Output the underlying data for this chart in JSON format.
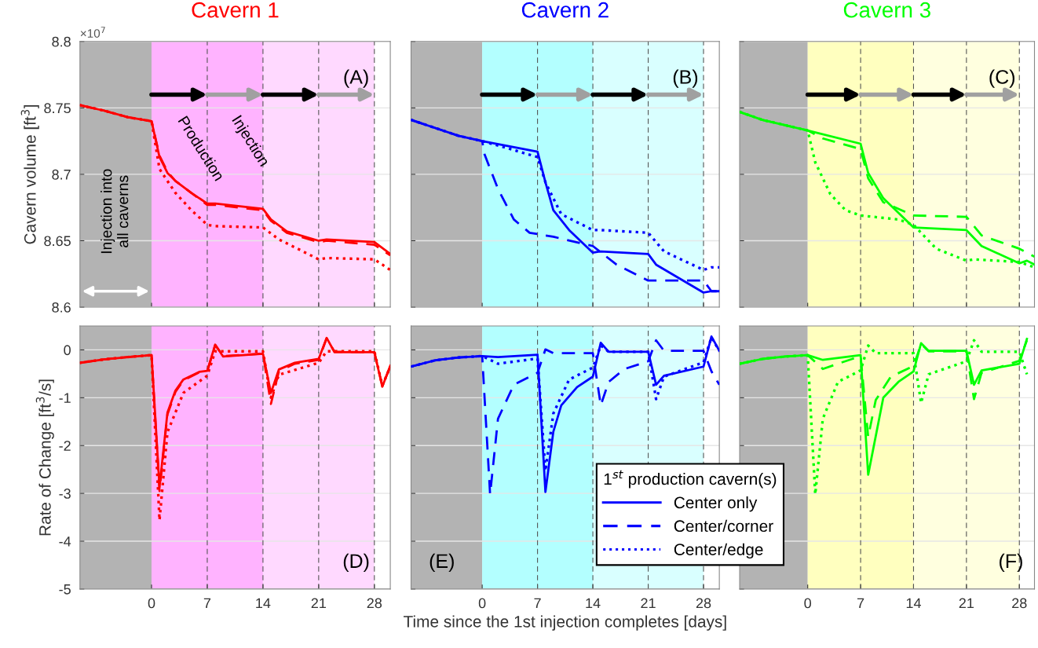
{
  "chart_data": [
    {
      "type": "line",
      "title": "Cavern 1",
      "ylabel": "Cavern volume [ft$^{3}$]",
      "xlim": [
        -9,
        30
      ],
      "xticks": [
        0,
        7,
        14,
        21,
        28
      ],
      "ylim": [
        8.6,
        8.8
      ],
      "yticks": [
        8.6,
        8.65,
        8.7,
        8.75,
        8.8
      ],
      "tick_labels": "y",
      "grid": "y",
      "annotations": [
        "(A)",
        "Production",
        "Injection",
        "Injection into\nall caverns",
        "×10$^{7}$"
      ],
      "bands": [
        {
          "axis": "x",
          "from": -9,
          "to": 0,
          "color": "#b3b3b3"
        },
        {
          "axis": "x",
          "from": 0,
          "to": 14,
          "color": "#ffb3ff"
        },
        {
          "axis": "x",
          "from": 14,
          "to": 28,
          "color": "#ffd9ff"
        }
      ],
      "ref_lines": [
        {
          "axis": "x",
          "value": 7,
          "color": "#555555",
          "line_style": "dashed"
        },
        {
          "axis": "x",
          "value": 14,
          "color": "#555555",
          "line_style": "dashed"
        },
        {
          "axis": "x",
          "value": 21,
          "color": "#555555",
          "line_style": "dashed"
        },
        {
          "axis": "x",
          "value": 28,
          "color": "#555555",
          "line_style": "dashed"
        }
      ],
      "series": [
        {
          "color": "#ff0000",
          "line_style": "solid",
          "x": [
            -9,
            -6,
            -3,
            0,
            1,
            2,
            3,
            5,
            7,
            8,
            14,
            15,
            17,
            21,
            22,
            28,
            30
          ],
          "values": [
            8.752,
            8.748,
            8.743,
            8.74,
            8.713,
            8.701,
            8.695,
            8.686,
            8.678,
            8.678,
            8.674,
            8.666,
            8.657,
            8.65,
            8.651,
            8.649,
            8.64
          ]
        },
        {
          "color": "#ff0000",
          "line_style": "dashed",
          "x": [
            -9,
            -6,
            -3,
            0,
            1,
            2,
            3,
            5,
            7,
            8,
            14,
            15,
            17,
            21,
            22,
            28,
            30
          ],
          "values": [
            8.752,
            8.748,
            8.743,
            8.74,
            8.714,
            8.702,
            8.695,
            8.686,
            8.677,
            8.677,
            8.673,
            8.665,
            8.656,
            8.649,
            8.65,
            8.647,
            8.639
          ]
        },
        {
          "color": "#ff0000",
          "line_style": "dotted",
          "x": [
            -9,
            -6,
            -3,
            0,
            1,
            3,
            5,
            7,
            8,
            14,
            16,
            21,
            22,
            28,
            30
          ],
          "values": [
            8.752,
            8.748,
            8.743,
            8.74,
            8.704,
            8.686,
            8.673,
            8.662,
            8.661,
            8.66,
            8.651,
            8.636,
            8.637,
            8.636,
            8.628
          ]
        }
      ]
    },
    {
      "type": "line",
      "title": "Cavern 2",
      "xlim": [
        -9,
        30
      ],
      "xticks": [
        0,
        7,
        14,
        21,
        28
      ],
      "ylim": [
        8.6,
        8.8
      ],
      "yticks": [
        8.6,
        8.65,
        8.7,
        8.75,
        8.8
      ],
      "tick_labels": false,
      "grid": "y",
      "annotations": [
        "(B)"
      ],
      "bands": [
        {
          "axis": "x",
          "from": -9,
          "to": 0,
          "color": "#b3b3b3"
        },
        {
          "axis": "x",
          "from": 0,
          "to": 14,
          "color": "#b3ffff"
        },
        {
          "axis": "x",
          "from": 14,
          "to": 28,
          "color": "#d9ffff"
        }
      ],
      "ref_lines": [
        {
          "axis": "x",
          "value": 7,
          "color": "#555555",
          "line_style": "dashed"
        },
        {
          "axis": "x",
          "value": 14,
          "color": "#555555",
          "line_style": "dashed"
        },
        {
          "axis": "x",
          "value": 21,
          "color": "#555555",
          "line_style": "dashed"
        },
        {
          "axis": "x",
          "value": 28,
          "color": "#555555",
          "line_style": "dashed"
        }
      ],
      "series": [
        {
          "color": "#0000ff",
          "line_style": "solid",
          "x": [
            -9,
            -6,
            -3,
            0,
            7,
            8,
            9,
            11,
            14,
            15,
            21,
            22,
            28,
            29,
            30
          ],
          "values": [
            8.741,
            8.735,
            8.729,
            8.725,
            8.717,
            8.694,
            8.673,
            8.658,
            8.641,
            8.642,
            8.64,
            8.632,
            8.611,
            8.612,
            8.612
          ]
        },
        {
          "color": "#0000ff",
          "line_style": "dashed",
          "x": [
            -9,
            -6,
            -3,
            0,
            0.3,
            2,
            4,
            6,
            9,
            14,
            17,
            21,
            28,
            29,
            30
          ],
          "values": [
            8.741,
            8.735,
            8.729,
            8.725,
            8.715,
            8.689,
            8.666,
            8.656,
            8.653,
            8.646,
            8.632,
            8.62,
            8.62,
            8.612,
            8.612
          ]
        },
        {
          "color": "#0000ff",
          "line_style": "dotted",
          "x": [
            -9,
            -6,
            -3,
            0,
            3,
            7,
            8,
            10,
            14,
            15,
            21,
            23,
            28,
            29,
            30
          ],
          "values": [
            8.741,
            8.735,
            8.729,
            8.725,
            8.72,
            8.713,
            8.694,
            8.67,
            8.658,
            8.658,
            8.656,
            8.642,
            8.628,
            8.63,
            8.63
          ]
        }
      ]
    },
    {
      "type": "line",
      "title": "Cavern 3",
      "xlim": [
        -9,
        30
      ],
      "xticks": [
        0,
        7,
        14,
        21,
        28
      ],
      "ylim": [
        8.6,
        8.8
      ],
      "yticks": [
        8.6,
        8.65,
        8.7,
        8.75,
        8.8
      ],
      "tick_labels": false,
      "grid": "y",
      "annotations": [
        "(C)"
      ],
      "bands": [
        {
          "axis": "x",
          "from": -9,
          "to": 0,
          "color": "#b3b3b3"
        },
        {
          "axis": "x",
          "from": 0,
          "to": 14,
          "color": "#ffffbf"
        },
        {
          "axis": "x",
          "from": 14,
          "to": 28,
          "color": "#ffffdf"
        }
      ],
      "ref_lines": [
        {
          "axis": "x",
          "value": 7,
          "color": "#555555",
          "line_style": "dashed"
        },
        {
          "axis": "x",
          "value": 14,
          "color": "#555555",
          "line_style": "dashed"
        },
        {
          "axis": "x",
          "value": 21,
          "color": "#555555",
          "line_style": "dashed"
        },
        {
          "axis": "x",
          "value": 28,
          "color": "#555555",
          "line_style": "dashed"
        }
      ],
      "series": [
        {
          "color": "#00ff00",
          "line_style": "solid",
          "x": [
            -9,
            -6,
            -3,
            0,
            7,
            8,
            10,
            14,
            21,
            23,
            28,
            29,
            30
          ],
          "values": [
            8.747,
            8.741,
            8.737,
            8.733,
            8.723,
            8.701,
            8.682,
            8.66,
            8.658,
            8.646,
            8.633,
            8.635,
            8.632
          ]
        },
        {
          "color": "#00ff00",
          "line_style": "dashed",
          "x": [
            -9,
            -6,
            -3,
            0,
            2,
            7,
            8,
            10,
            14,
            21,
            23,
            28,
            30
          ],
          "values": [
            8.747,
            8.741,
            8.737,
            8.733,
            8.727,
            8.719,
            8.697,
            8.679,
            8.669,
            8.668,
            8.654,
            8.644,
            8.638
          ]
        },
        {
          "color": "#00ff00",
          "line_style": "dotted",
          "x": [
            -9,
            -6,
            -3,
            0,
            1,
            3,
            5,
            7,
            12,
            14,
            17,
            21,
            22,
            28,
            30
          ],
          "values": [
            8.747,
            8.741,
            8.737,
            8.733,
            8.709,
            8.685,
            8.673,
            8.669,
            8.666,
            8.662,
            8.644,
            8.635,
            8.636,
            8.634,
            8.63
          ]
        }
      ]
    },
    {
      "type": "line",
      "ylabel": "Rate of Change [ft$^{3}$/s]",
      "xlim": [
        -9,
        30
      ],
      "xticks": [
        0,
        7,
        14,
        21,
        28
      ],
      "ylim": [
        -5,
        0.5
      ],
      "yticks": [
        -5,
        -4,
        -3,
        -2,
        -1,
        0
      ],
      "grid": "y",
      "annotations": [
        "(D)"
      ],
      "bands": [
        {
          "axis": "x",
          "from": -9,
          "to": 0,
          "color": "#b3b3b3"
        },
        {
          "axis": "x",
          "from": 0,
          "to": 14,
          "color": "#ffb3ff"
        },
        {
          "axis": "x",
          "from": 14,
          "to": 28,
          "color": "#ffd9ff"
        }
      ],
      "ref_lines": [
        {
          "axis": "x",
          "value": 7,
          "color": "#555555",
          "line_style": "dashed"
        },
        {
          "axis": "x",
          "value": 14,
          "color": "#555555",
          "line_style": "dashed"
        },
        {
          "axis": "x",
          "value": 21,
          "color": "#555555",
          "line_style": "dashed"
        },
        {
          "axis": "x",
          "value": 28,
          "color": "#555555",
          "line_style": "dashed"
        }
      ],
      "series": [
        {
          "color": "#ff0000",
          "line_style": "solid",
          "x": [
            -9,
            -6,
            -3,
            0,
            1,
            2,
            3,
            4,
            6,
            7,
            8,
            9,
            14,
            15,
            16,
            18,
            21,
            22,
            23,
            28,
            29,
            30
          ],
          "values": [
            -0.27,
            -0.2,
            -0.15,
            -0.11,
            -2.87,
            -1.31,
            -0.85,
            -0.62,
            -0.46,
            -0.44,
            0.11,
            -0.14,
            -0.08,
            -0.9,
            -0.41,
            -0.27,
            -0.19,
            0.25,
            -0.05,
            -0.05,
            -0.77,
            -0.33
          ]
        },
        {
          "color": "#ff0000",
          "line_style": "dashed",
          "x": [
            -9,
            -6,
            -3,
            0,
            1,
            2,
            3,
            4,
            6,
            7,
            8,
            9,
            14,
            15,
            16,
            18,
            21,
            22,
            23,
            28,
            29,
            30
          ],
          "values": [
            -0.27,
            -0.2,
            -0.15,
            -0.11,
            -2.95,
            -1.35,
            -0.88,
            -0.64,
            -0.47,
            -0.45,
            0.1,
            -0.13,
            -0.08,
            -1.13,
            -0.45,
            -0.29,
            -0.21,
            0.24,
            -0.04,
            -0.05,
            -0.75,
            -0.35
          ]
        },
        {
          "color": "#ff0000",
          "line_style": "dotted",
          "x": [
            -9,
            -6,
            -3,
            0,
            1,
            2,
            4,
            7,
            8,
            14,
            15,
            16,
            21,
            22,
            28,
            29,
            30
          ],
          "values": [
            -0.27,
            -0.2,
            -0.15,
            -0.11,
            -3.56,
            -1.72,
            -0.9,
            -0.54,
            -0.03,
            -0.03,
            -1.0,
            -0.52,
            -0.27,
            -0.03,
            -0.03,
            -0.75,
            -0.35
          ]
        }
      ]
    },
    {
      "type": "line",
      "xlabel": "Time since the 1st injection completes [days]",
      "xlim": [
        -9,
        30
      ],
      "xticks": [
        0,
        7,
        14,
        21,
        28
      ],
      "ylim": [
        -5,
        0.5
      ],
      "yticks": [
        -5,
        -4,
        -3,
        -2,
        -1,
        0
      ],
      "tick_labels": "x",
      "grid": "y",
      "annotations": [
        "(E)"
      ],
      "legend": "bottom right",
      "legend_title": "1$^{st}$ production cavern(s)",
      "bands": [
        {
          "axis": "x",
          "from": -9,
          "to": 0,
          "color": "#b3b3b3"
        },
        {
          "axis": "x",
          "from": 0,
          "to": 14,
          "color": "#b3ffff"
        },
        {
          "axis": "x",
          "from": 14,
          "to": 28,
          "color": "#d9ffff"
        }
      ],
      "ref_lines": [
        {
          "axis": "x",
          "value": 7,
          "color": "#555555",
          "line_style": "dashed"
        },
        {
          "axis": "x",
          "value": 14,
          "color": "#555555",
          "line_style": "dashed"
        },
        {
          "axis": "x",
          "value": 21,
          "color": "#555555",
          "line_style": "dashed"
        },
        {
          "axis": "x",
          "value": 28,
          "color": "#555555",
          "line_style": "dashed"
        }
      ],
      "series": [
        {
          "name": "Center only",
          "color": "#0000ff",
          "line_style": "solid",
          "x": [
            -9,
            -6,
            -3,
            0,
            2,
            7,
            8,
            9,
            10,
            12,
            14,
            15,
            16,
            21,
            22,
            23,
            28,
            29,
            30
          ],
          "values": [
            -0.35,
            -0.22,
            -0.16,
            -0.13,
            -0.15,
            -0.1,
            -2.97,
            -1.71,
            -1.16,
            -0.78,
            -0.56,
            0.15,
            -0.04,
            -0.04,
            -0.73,
            -0.54,
            -0.35,
            0.28,
            -0.02
          ]
        },
        {
          "name": "Center/corner",
          "color": "#0000ff",
          "line_style": "dashed",
          "x": [
            -9,
            -6,
            -3,
            0,
            1,
            2,
            4,
            7,
            8,
            9,
            14,
            15,
            16,
            18,
            21,
            22,
            23,
            28,
            29,
            30
          ],
          "values": [
            -0.35,
            -0.22,
            -0.16,
            -0.13,
            -3.02,
            -1.44,
            -0.73,
            -0.48,
            0.01,
            -0.07,
            -0.07,
            -1.16,
            -0.67,
            -0.4,
            -0.24,
            0.2,
            -0.02,
            -0.02,
            -0.45,
            -0.73
          ]
        },
        {
          "name": "Center/edge",
          "color": "#0000ff",
          "line_style": "dotted",
          "x": [
            -9,
            -6,
            -3,
            0,
            2,
            7,
            8,
            9,
            11,
            14,
            15,
            16,
            21,
            22,
            23,
            28,
            29,
            30
          ],
          "values": [
            -0.35,
            -0.22,
            -0.16,
            -0.13,
            -0.29,
            -0.18,
            -2.53,
            -1.33,
            -0.62,
            -0.37,
            0.09,
            -0.04,
            -0.04,
            -1.03,
            -0.56,
            -0.26,
            0.26,
            -0.02
          ]
        }
      ]
    },
    {
      "type": "line",
      "xlim": [
        -9,
        30
      ],
      "xticks": [
        0,
        7,
        14,
        21,
        28
      ],
      "ylim": [
        -5,
        0.5
      ],
      "yticks": [
        -5,
        -4,
        -3,
        -2,
        -1,
        0
      ],
      "tick_labels": "x",
      "grid": "y",
      "annotations": [
        "(F)"
      ],
      "bands": [
        {
          "axis": "x",
          "from": -9,
          "to": 0,
          "color": "#b3b3b3"
        },
        {
          "axis": "x",
          "from": 0,
          "to": 14,
          "color": "#ffffbf"
        },
        {
          "axis": "x",
          "from": 14,
          "to": 28,
          "color": "#ffffdf"
        }
      ],
      "ref_lines": [
        {
          "axis": "x",
          "value": 7,
          "color": "#555555",
          "line_style": "dashed"
        },
        {
          "axis": "x",
          "value": 14,
          "color": "#555555",
          "line_style": "dashed"
        },
        {
          "axis": "x",
          "value": 21,
          "color": "#555555",
          "line_style": "dashed"
        },
        {
          "axis": "x",
          "value": 28,
          "color": "#555555",
          "line_style": "dashed"
        }
      ],
      "series": [
        {
          "color": "#00ff00",
          "line_style": "solid",
          "x": [
            -9,
            -6,
            -3,
            0,
            2,
            7,
            8,
            10,
            12,
            14,
            15,
            16,
            21,
            22,
            23,
            28,
            29
          ],
          "values": [
            -0.29,
            -0.19,
            -0.14,
            -0.11,
            -0.21,
            -0.11,
            -2.61,
            -1.0,
            -0.67,
            -0.45,
            0.14,
            -0.02,
            -0.02,
            -0.73,
            -0.43,
            -0.29,
            0.23
          ]
        },
        {
          "color": "#00ff00",
          "line_style": "dashed",
          "x": [
            -9,
            -6,
            -3,
            0,
            2,
            4,
            7,
            8,
            9,
            11,
            14,
            15,
            16,
            21,
            22,
            23,
            28,
            29
          ],
          "values": [
            -0.29,
            -0.19,
            -0.14,
            -0.11,
            -0.4,
            -0.29,
            -0.13,
            -1.82,
            -1.05,
            -0.56,
            -0.34,
            0.12,
            -0.03,
            -0.03,
            -1.03,
            -0.48,
            -0.23,
            0.2
          ]
        },
        {
          "color": "#00ff00",
          "line_style": "dotted",
          "x": [
            -9,
            -6,
            -3,
            0,
            1,
            2,
            4,
            7,
            8,
            9,
            14,
            15,
            16,
            21,
            22,
            23,
            28,
            29
          ],
          "values": [
            -0.29,
            -0.19,
            -0.14,
            -0.11,
            -3.02,
            -1.44,
            -0.67,
            -0.43,
            0.09,
            -0.07,
            -0.07,
            -1.11,
            -0.51,
            -0.24,
            0.2,
            -0.04,
            -0.04,
            -0.51
          ]
        }
      ]
    }
  ]
}
